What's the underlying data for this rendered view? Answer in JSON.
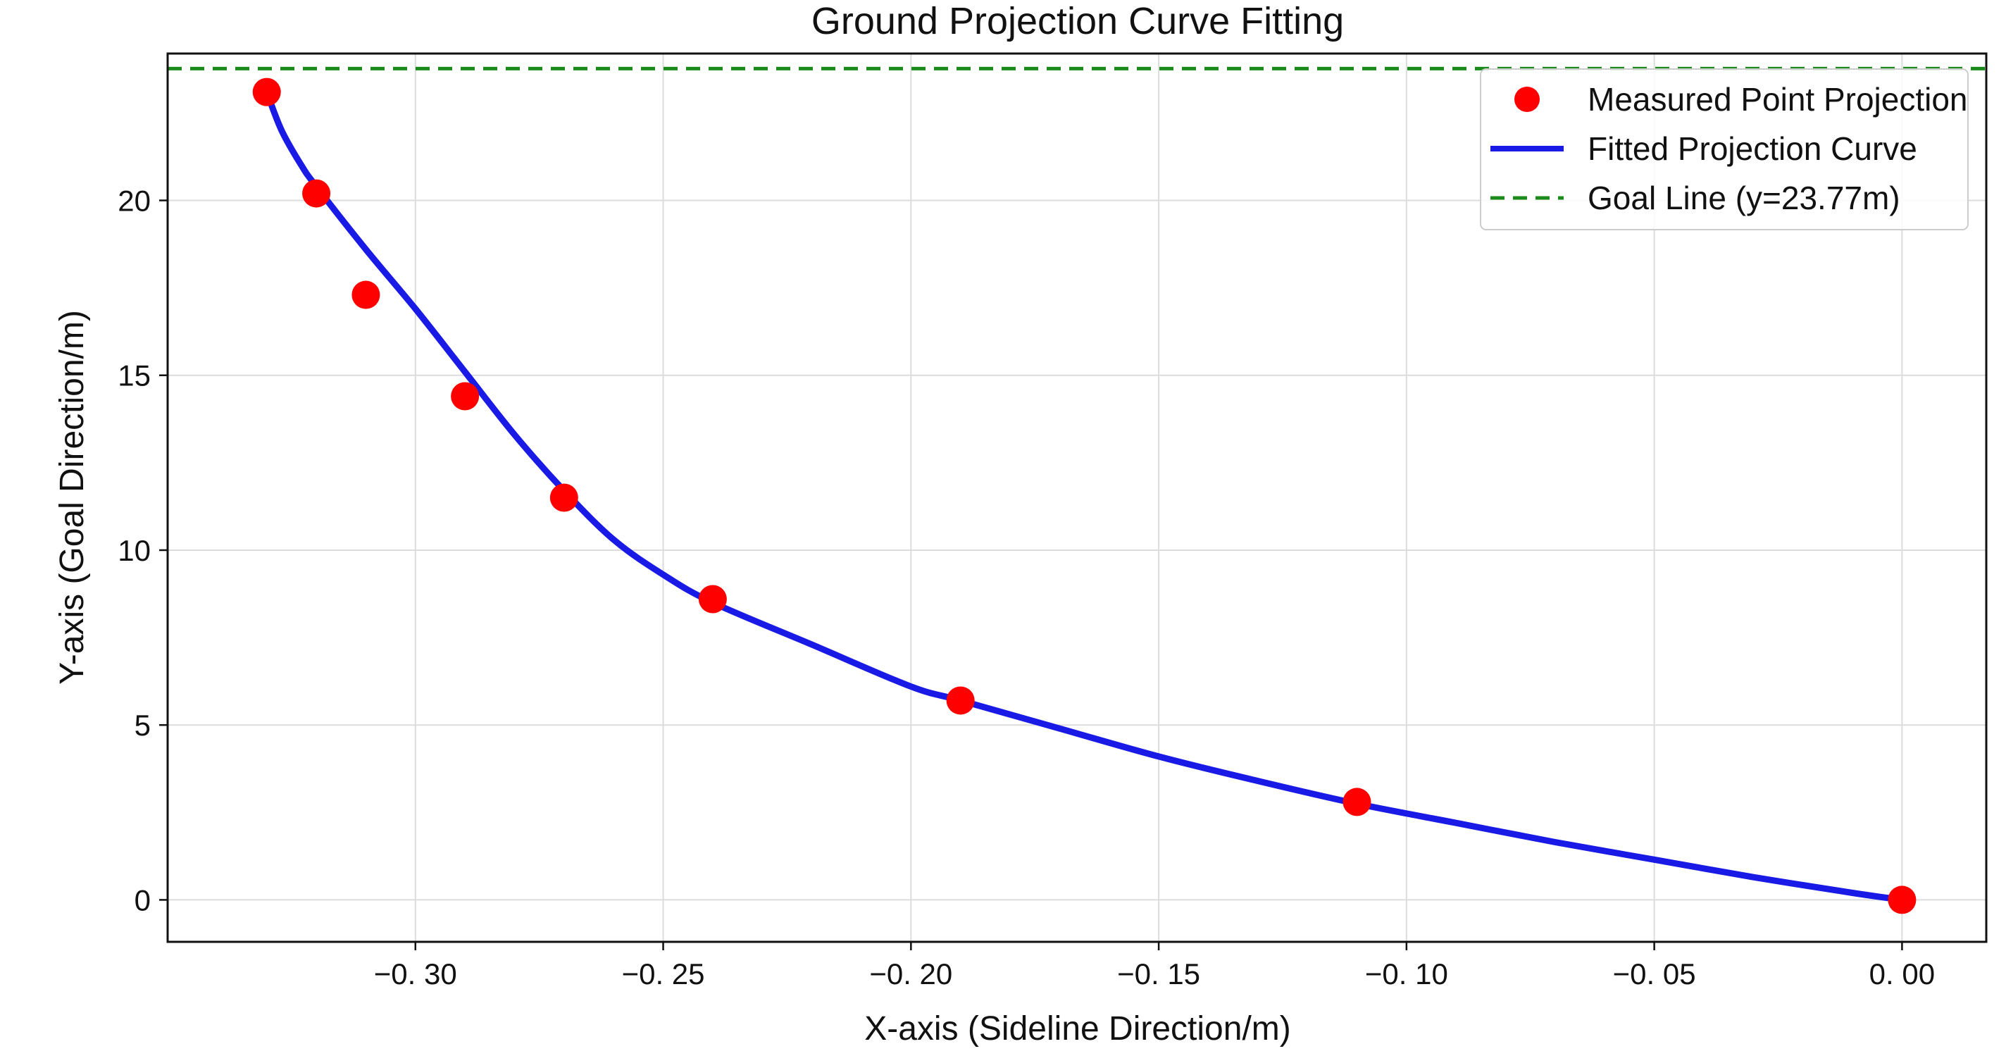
{
  "chart_data": {
    "type": "scatter",
    "title": "Ground Projection Curve Fitting",
    "xlabel": "X-axis (Sideline Direction/m)",
    "ylabel": "Y-axis (Goal Direction/m)",
    "xlim": [
      -0.35,
      0.017
    ],
    "ylim": [
      -1.2,
      24.2
    ],
    "xticks": [
      -0.3,
      -0.25,
      -0.2,
      -0.15,
      -0.1,
      -0.05,
      0.0
    ],
    "xtick_labels": [
      "−0. 30",
      "−0. 25",
      "−0. 20",
      "−0. 15",
      "−0. 10",
      "−0. 05",
      "0. 00"
    ],
    "yticks": [
      0,
      5,
      10,
      15,
      20
    ],
    "ytick_labels": [
      "0",
      "5",
      "10",
      "15",
      "20"
    ],
    "grid": true,
    "legend_position": "top-right",
    "series": [
      {
        "name": "Measured Point Projection",
        "kind": "scatter",
        "color": "#ff0000",
        "x": [
          -0.33,
          -0.32,
          -0.31,
          -0.29,
          -0.27,
          -0.24,
          -0.19,
          -0.11,
          0.0
        ],
        "y": [
          23.1,
          20.2,
          17.3,
          14.4,
          11.5,
          8.6,
          5.7,
          2.8,
          0.0
        ]
      },
      {
        "name": "Fitted Projection Curve",
        "kind": "line",
        "color": "#1a1ae6",
        "x": [
          -0.33,
          -0.327,
          -0.323,
          -0.32,
          -0.31,
          -0.3,
          -0.29,
          -0.28,
          -0.27,
          -0.26,
          -0.25,
          -0.24,
          -0.22,
          -0.2,
          -0.19,
          -0.17,
          -0.15,
          -0.13,
          -0.11,
          -0.09,
          -0.07,
          -0.05,
          -0.03,
          -0.01,
          0.0
        ],
        "y": [
          23.1,
          22.0,
          21.0,
          20.4,
          18.6,
          16.9,
          15.1,
          13.3,
          11.7,
          10.3,
          9.3,
          8.5,
          7.3,
          6.1,
          5.7,
          4.9,
          4.1,
          3.4,
          2.75,
          2.2,
          1.65,
          1.15,
          0.65,
          0.2,
          0.0
        ]
      },
      {
        "name": "Goal Line (y=23.77m)",
        "kind": "hline",
        "color": "#1a8a1a",
        "y": 23.77
      }
    ]
  }
}
